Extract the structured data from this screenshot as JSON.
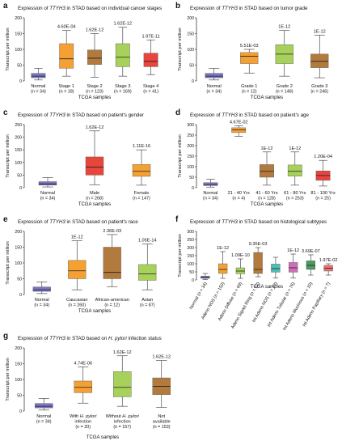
{
  "colors": {
    "normal": "#7b74c8",
    "orange": "#f5a033",
    "brown": "#b27a3d",
    "green": "#a7d15a",
    "red": "#e8453c",
    "teal": "#4fbfb5",
    "pink": "#cf6fb7",
    "dark_green": "#4c9a62",
    "light_red": "#ee7070",
    "magenta": "#c64fa0",
    "blue_teal": "#48a9c1"
  },
  "chart_data": [
    {
      "panel": "a",
      "type": "box",
      "title_parts": [
        "Expression of ",
        "TTYH3",
        " in STAD based on individual cancer stages"
      ],
      "ylabel": "Transcript per million",
      "xlabel": "TCGA samples",
      "ylim": [
        0,
        200
      ],
      "yticks": [
        0,
        50,
        100,
        150,
        200
      ],
      "rotated_labels": false,
      "groups": [
        {
          "label": "Normal",
          "n": "(n = 34)",
          "p": "",
          "color": "normal",
          "min": 3,
          "q1": 10,
          "median": 15,
          "q3": 24,
          "max": 40
        },
        {
          "label": "Stage 1",
          "n": "(n = 18)",
          "p": "4.60E-04",
          "color": "orange",
          "min": 15,
          "q1": 40,
          "median": 70,
          "q3": 118,
          "max": 160
        },
        {
          "label": "Stage 2",
          "n": "(n = 123)",
          "p": "1.62E-12",
          "color": "brown",
          "min": 12,
          "q1": 52,
          "median": 72,
          "q3": 98,
          "max": 150
        },
        {
          "label": "Stage 3",
          "n": "(n = 169)",
          "p": "1.62E-12",
          "color": "green",
          "min": 15,
          "q1": 45,
          "median": 75,
          "q3": 118,
          "max": 170
        },
        {
          "label": "Stage 4",
          "n": "(n = 41)",
          "p": "1.97E-11",
          "color": "red",
          "min": 20,
          "q1": 45,
          "median": 62,
          "q3": 88,
          "max": 130
        }
      ]
    },
    {
      "panel": "b",
      "type": "box",
      "title_parts": [
        "Expression of ",
        "TTYH3",
        " in STAD based on tumor grade"
      ],
      "ylabel": "Transcript per million",
      "xlabel": "TCGA samples",
      "ylim": [
        0,
        200
      ],
      "yticks": [
        0,
        50,
        100,
        150,
        200
      ],
      "rotated_labels": false,
      "groups": [
        {
          "label": "Normal",
          "n": "(n = 34)",
          "p": "",
          "color": "normal",
          "min": 3,
          "q1": 10,
          "median": 15,
          "q3": 24,
          "max": 40
        },
        {
          "label": "Grade 1",
          "n": "(n = 12)",
          "p": "5.51E-03",
          "color": "orange",
          "min": 25,
          "q1": 55,
          "median": 78,
          "q3": 90,
          "max": 100
        },
        {
          "label": "Grade 2",
          "n": "(n = 148)",
          "p": "1E-12",
          "color": "green",
          "min": 15,
          "q1": 55,
          "median": 85,
          "q3": 115,
          "max": 160
        },
        {
          "label": "Grade 3",
          "n": "(n = 246)",
          "p": "1E-12",
          "color": "brown",
          "min": 10,
          "q1": 42,
          "median": 62,
          "q3": 85,
          "max": 145
        }
      ]
    },
    {
      "panel": "c",
      "type": "box",
      "title_parts": [
        "Expression of ",
        "TTYH3",
        " in STAD based on patient's gender"
      ],
      "ylabel": "Transcript per million",
      "xlabel": "TCGA samples",
      "ylim": [
        0,
        250
      ],
      "yticks": [
        0,
        50,
        100,
        150,
        200,
        250
      ],
      "rotated_labels": false,
      "groups": [
        {
          "label": "Normal",
          "n": "(n = 34)",
          "p": "",
          "color": "normal",
          "min": 3,
          "q1": 10,
          "median": 15,
          "q3": 24,
          "max": 40
        },
        {
          "label": "Male",
          "n": "(n = 268)",
          "p": "1.62E-12",
          "color": "red",
          "min": 12,
          "q1": 50,
          "median": 82,
          "q3": 122,
          "max": 225
        },
        {
          "label": "Female",
          "n": "(n = 147)",
          "p": "1.11E-16",
          "color": "orange",
          "min": 10,
          "q1": 45,
          "median": 65,
          "q3": 92,
          "max": 150
        }
      ]
    },
    {
      "panel": "d",
      "type": "box",
      "title_parts": [
        "Expression of ",
        "TTYH3",
        " in STAD based on patient's age"
      ],
      "ylabel": "Transcript per million",
      "xlabel": "TCGA samples",
      "ylim": [
        0,
        300
      ],
      "yticks": [
        0,
        50,
        100,
        150,
        200,
        250,
        300
      ],
      "rotated_labels": false,
      "groups": [
        {
          "label": "Normal",
          "n": "(n = 34)",
          "p": "",
          "color": "normal",
          "min": 3,
          "q1": 10,
          "median": 15,
          "q3": 24,
          "max": 40
        },
        {
          "label": "21 - 40 Yrs",
          "n": "(n = 4)",
          "p": "4.67E-02",
          "color": "orange",
          "min": 245,
          "q1": 262,
          "median": 275,
          "q3": 285,
          "max": 295
        },
        {
          "label": "41 - 60 Yrs",
          "n": "(n = 128)",
          "p": "1E-12",
          "color": "brown",
          "min": 12,
          "q1": 50,
          "median": 78,
          "q3": 110,
          "max": 170
        },
        {
          "label": "61 - 80 Yrs",
          "n": "(n = 253)",
          "p": "1E-12",
          "color": "green",
          "min": 12,
          "q1": 55,
          "median": 78,
          "q3": 108,
          "max": 170
        },
        {
          "label": "81 - 100 Yrs",
          "n": "(n = 25)",
          "p": "1.20E-04",
          "color": "red",
          "min": 8,
          "q1": 35,
          "median": 58,
          "q3": 80,
          "max": 130
        }
      ]
    },
    {
      "panel": "e",
      "type": "box",
      "title_parts": [
        "Expression of ",
        "TTYH3",
        " in STAD based on patient's race"
      ],
      "ylabel": "Transcript per million",
      "xlabel": "TCGA samples",
      "ylim": [
        0,
        200
      ],
      "yticks": [
        0,
        50,
        100,
        150,
        200
      ],
      "rotated_labels": false,
      "groups": [
        {
          "label": "Normal",
          "n": "(n = 34)",
          "p": "",
          "color": "normal",
          "min": 3,
          "q1": 10,
          "median": 15,
          "q3": 24,
          "max": 40
        },
        {
          "label": "Caucasian",
          "n": "(n = 260)",
          "p": "1E-12",
          "color": "orange",
          "min": 15,
          "q1": 50,
          "median": 75,
          "q3": 108,
          "max": 170
        },
        {
          "label": "African-american",
          "n": "(n = 12)",
          "p": "2.36E-03",
          "color": "brown",
          "min": 25,
          "q1": 50,
          "median": 70,
          "q3": 150,
          "max": 190
        },
        {
          "label": "Asian",
          "n": "(n = 87)",
          "p": "1.05E-14",
          "color": "green",
          "min": 15,
          "q1": 45,
          "median": 65,
          "q3": 95,
          "max": 160
        }
      ]
    },
    {
      "panel": "f",
      "type": "box",
      "title_parts": [
        "Expression of ",
        "TTYH3",
        " in STAD based on histological subtypes"
      ],
      "ylabel": "Transcript per million",
      "xlabel": "TCGA samples",
      "ylim": [
        0,
        300
      ],
      "yticks": [
        0,
        50,
        100,
        150,
        200,
        250,
        300
      ],
      "rotated_labels": true,
      "groups": [
        {
          "label": "Normal",
          "n": "(n = 34)",
          "p": "",
          "color": "normal",
          "min": 3,
          "q1": 10,
          "median": 15,
          "q3": 24,
          "max": 40
        },
        {
          "label": "Adeno NOS",
          "n": "(n = 150)",
          "p": "1E-12",
          "color": "orange",
          "min": 10,
          "q1": 40,
          "median": 65,
          "q3": 100,
          "max": 175
        },
        {
          "label": "Adeno Diffuse",
          "n": "(n = 69)",
          "p": "1.09E-10",
          "color": "green",
          "min": 10,
          "q1": 38,
          "median": 55,
          "q3": 75,
          "max": 130
        },
        {
          "label": "Adeno Signet Ring",
          "n": "(n = 12)",
          "p": "9.35E-03",
          "color": "brown",
          "min": 20,
          "q1": 40,
          "median": 65,
          "q3": 170,
          "max": 200
        },
        {
          "label": "Int Adeno NOS",
          "n": "(n = 73)",
          "p": "",
          "color": "teal",
          "min": 12,
          "q1": 48,
          "median": 70,
          "q3": 98,
          "max": 140
        },
        {
          "label": "Int Adeno Tubular",
          "n": "(n = 76)",
          "p": "1E-12",
          "color": "pink",
          "min": 12,
          "q1": 48,
          "median": 75,
          "q3": 108,
          "max": 160
        },
        {
          "label": "Int Adeno Mucinous",
          "n": "(n = 20)",
          "p": "3.69E-07",
          "color": "dark_green",
          "min": 30,
          "q1": 65,
          "median": 90,
          "q3": 118,
          "max": 155
        },
        {
          "label": "Int Adeno Papillary",
          "n": "(n = 7)",
          "p": "1.97E-02",
          "color": "light_red",
          "min": 30,
          "q1": 55,
          "median": 72,
          "q3": 90,
          "max": 100
        }
      ]
    },
    {
      "panel": "g",
      "type": "box",
      "title_parts": [
        "Expression of ",
        "TTYH3",
        " in STAD based on ",
        "H. pylori",
        " infection status"
      ],
      "ylabel": "Transcript per million",
      "xlabel": "TCGA samples",
      "ylim": [
        0,
        200
      ],
      "yticks": [
        0,
        50,
        100,
        150,
        200
      ],
      "rotated_labels": false,
      "groups": [
        {
          "label": "Normal",
          "label_lines": [
            "Normal"
          ],
          "n": "(n = 34)",
          "p": "",
          "color": "normal",
          "min": 3,
          "q1": 10,
          "median": 15,
          "q3": 24,
          "max": 40
        },
        {
          "label": "With H. pylori infection",
          "label_lines": [
            "With H. pylori",
            "infection"
          ],
          "n": "(n = 20)",
          "p": "4.74E-06",
          "color": "orange",
          "min": 25,
          "q1": 58,
          "median": 75,
          "q3": 95,
          "max": 140
        },
        {
          "label": "Without H. pylori infection",
          "label_lines": [
            "Without H. pylori",
            "infection"
          ],
          "n": "(n = 157)",
          "p": "1.62E-12",
          "color": "green",
          "min": 15,
          "q1": 45,
          "median": 75,
          "q3": 125,
          "max": 175
        },
        {
          "label": "Not available",
          "label_lines": [
            "Not",
            "available"
          ],
          "n": "(n = 153)",
          "p": "1.62E-12",
          "color": "brown",
          "min": 12,
          "q1": 52,
          "median": 78,
          "q3": 105,
          "max": 160
        }
      ]
    }
  ]
}
